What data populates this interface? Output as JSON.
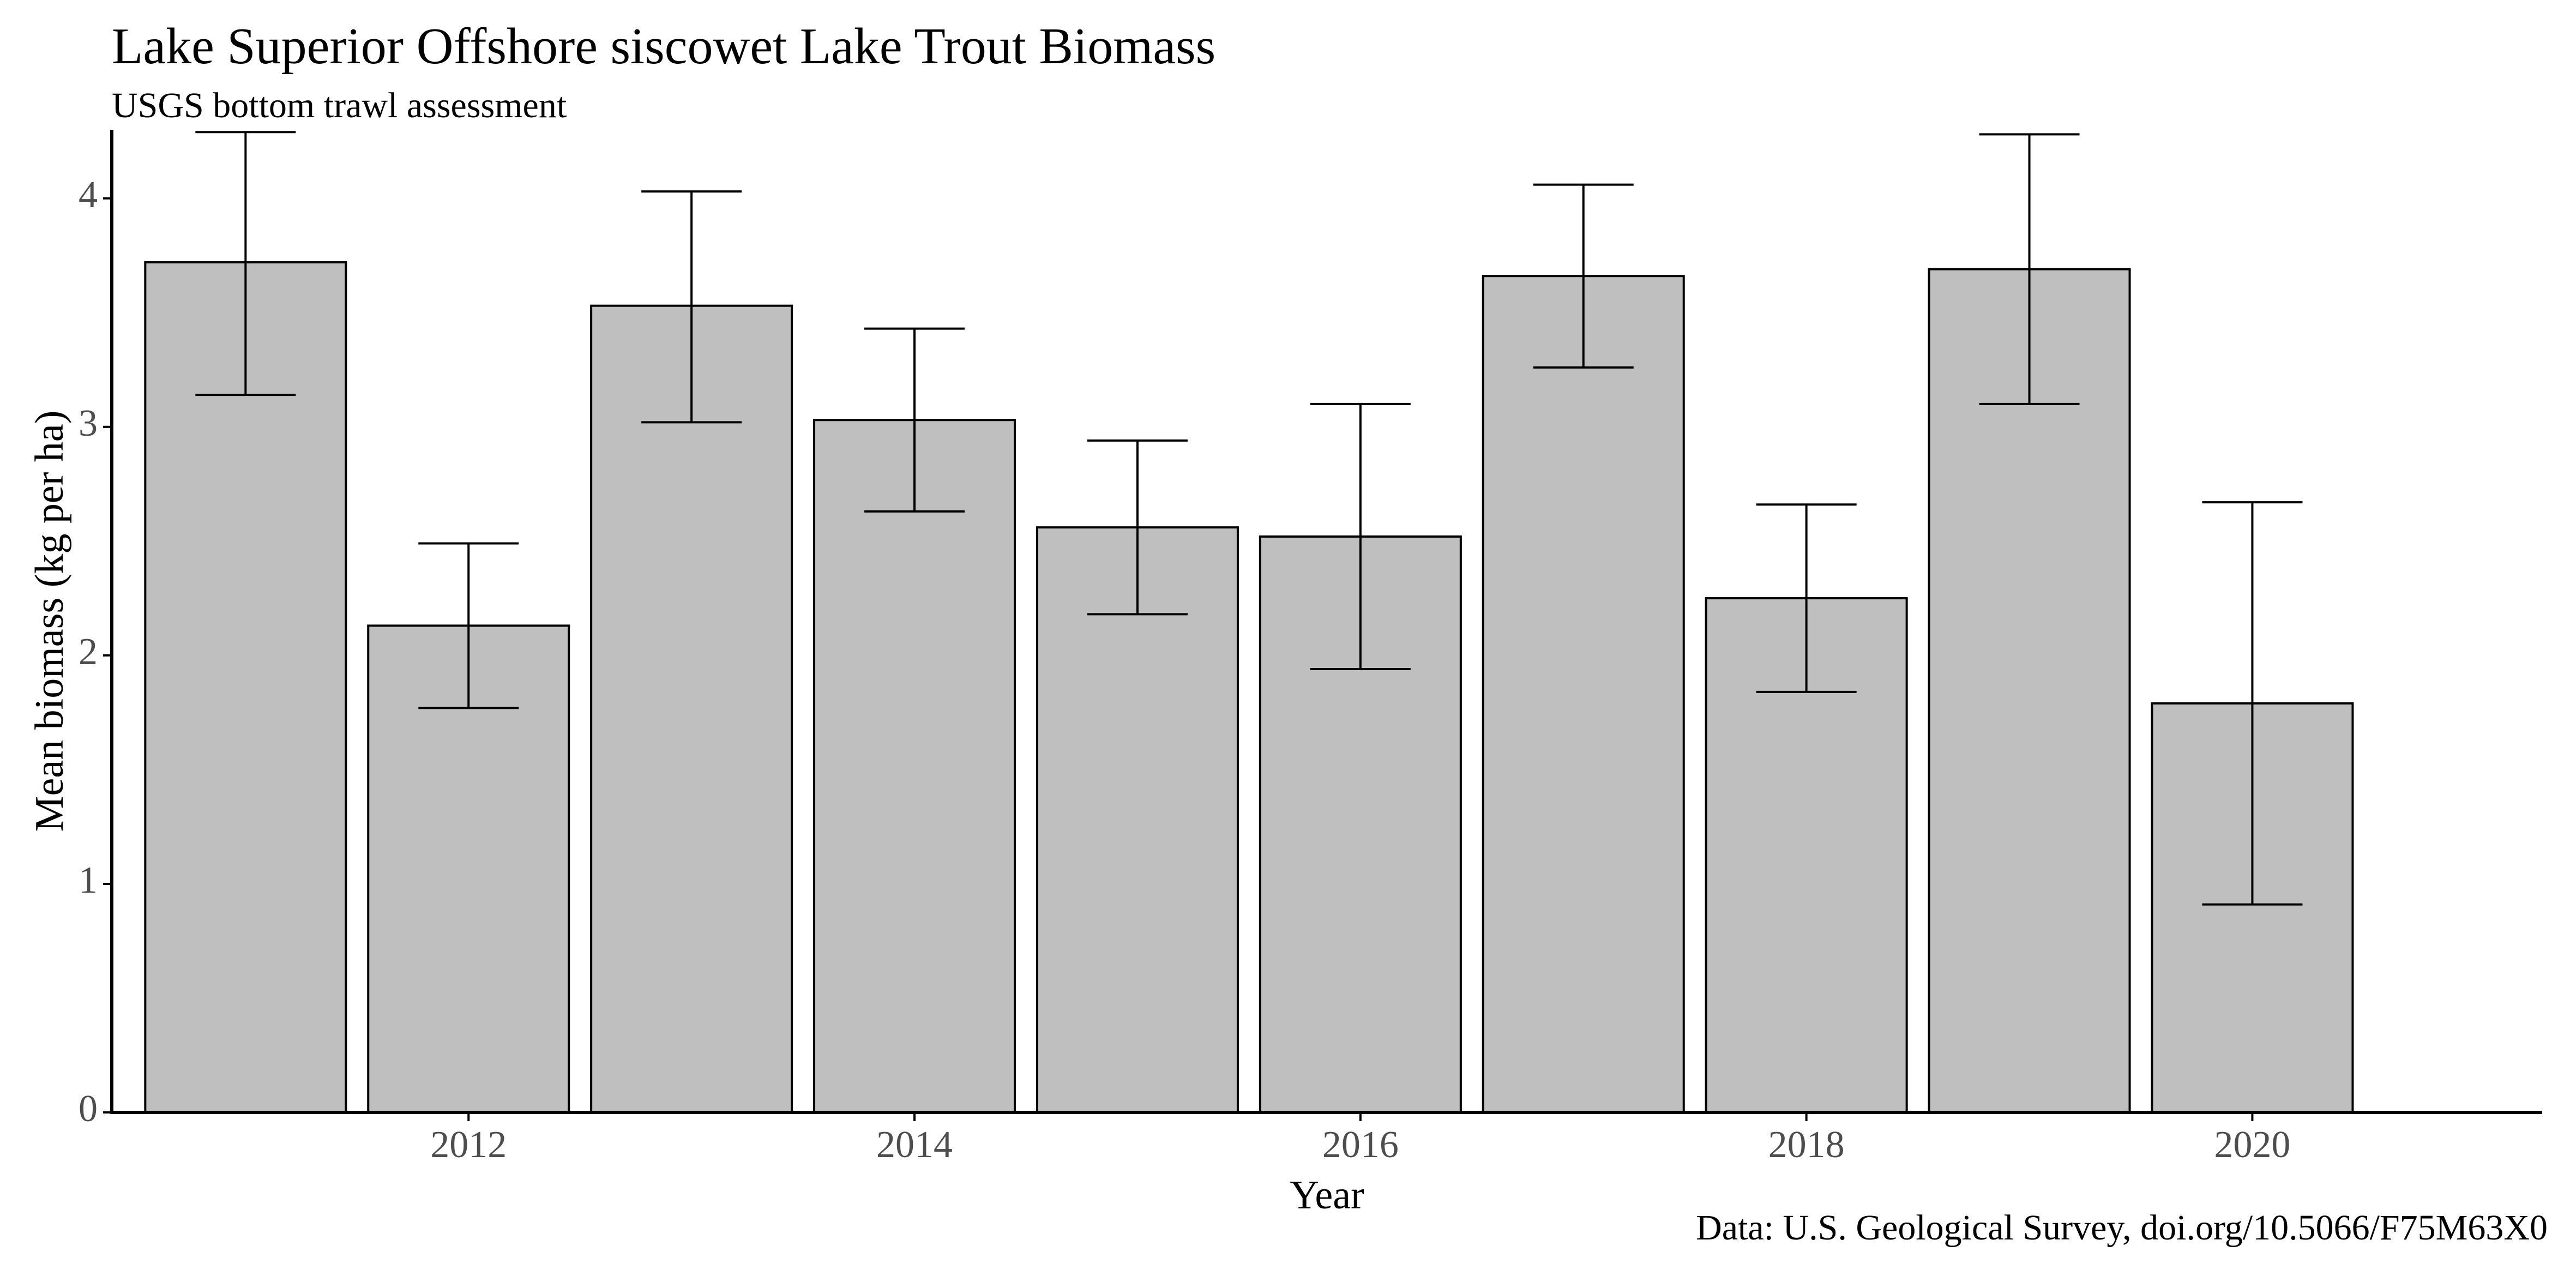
{
  "chart_data": {
    "type": "bar",
    "title": "Lake Superior Offshore siscowet Lake Trout Biomass",
    "subtitle": "USGS bottom trawl assessment",
    "caption": "Data: U.S. Geological Survey, doi.org/10.5066/F75M63X0",
    "xlabel": "Year",
    "ylabel": "Mean biomass (kg per ha)",
    "x": [
      2011,
      2012,
      2013,
      2014,
      2015,
      2016,
      2017,
      2018,
      2019,
      2020
    ],
    "values": [
      3.72,
      2.13,
      3.53,
      3.03,
      2.56,
      2.52,
      3.66,
      2.25,
      3.69,
      1.79
    ],
    "error_lower": [
      3.14,
      1.77,
      3.02,
      2.63,
      2.18,
      1.94,
      3.26,
      1.84,
      3.1,
      0.91
    ],
    "error_upper": [
      4.29,
      2.49,
      4.03,
      3.43,
      2.94,
      3.1,
      4.06,
      2.66,
      4.28,
      2.67
    ],
    "x_ticks": [
      "2012",
      "2014",
      "2016",
      "2018",
      "2020"
    ],
    "y_ticks": [
      "0",
      "1",
      "2",
      "3",
      "4"
    ],
    "xlim": [
      2010.4,
      2021.3
    ],
    "ylim": [
      0,
      4.3
    ],
    "grid": false,
    "legend": "none",
    "colors": {
      "bar_fill": "#bfbfbf",
      "bar_stroke": "#000000",
      "errorbar": "#000000",
      "axis": "#000000",
      "tick_label": "#4d4d4d"
    }
  }
}
